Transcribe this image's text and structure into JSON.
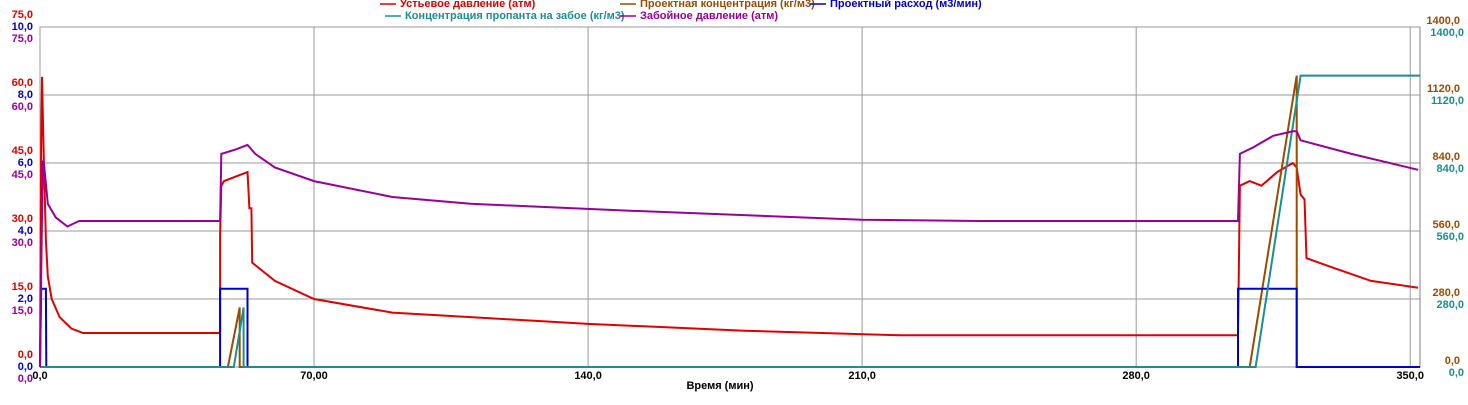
{
  "chart_data": {
    "type": "line",
    "x_label": "Время (мин)",
    "xlim": [
      0,
      352.5
    ],
    "xticks": [
      {
        "value": 0,
        "label": "0,0"
      },
      {
        "value": 70,
        "label": "70,00"
      },
      {
        "value": 140,
        "label": "140,0"
      },
      {
        "value": 210,
        "label": "210,0"
      },
      {
        "value": 280,
        "label": "280,0"
      },
      {
        "value": 350,
        "label": "350,0"
      }
    ],
    "grid": true,
    "axes": [
      {
        "side": "left",
        "color": "#e00000",
        "lim": [
          0,
          75
        ],
        "ticks": [
          {
            "value": 0,
            "label": "0,0"
          },
          {
            "value": 15,
            "label": "15,0"
          },
          {
            "value": 30,
            "label": "30,0"
          },
          {
            "value": 45,
            "label": "45,0"
          },
          {
            "value": 60,
            "label": "60,0"
          },
          {
            "value": 75,
            "label": "75,0"
          }
        ]
      },
      {
        "side": "left",
        "color": "#0000cc",
        "lim": [
          0,
          10
        ],
        "ticks": [
          {
            "value": 0,
            "label": "0,0"
          },
          {
            "value": 2,
            "label": "2,0"
          },
          {
            "value": 4,
            "label": "4,0"
          },
          {
            "value": 6,
            "label": "6,0"
          },
          {
            "value": 8,
            "label": "8,0"
          },
          {
            "value": 10,
            "label": "10,0"
          }
        ]
      },
      {
        "side": "left",
        "color": "#990099",
        "lim": [
          0,
          75
        ],
        "ticks": [
          {
            "value": 0,
            "label": "0,0"
          },
          {
            "value": 15,
            "label": "15,0"
          },
          {
            "value": 30,
            "label": "30,0"
          },
          {
            "value": 45,
            "label": "45,0"
          },
          {
            "value": 60,
            "label": "60,0"
          },
          {
            "value": 75,
            "label": "75,0"
          }
        ]
      },
      {
        "side": "right",
        "color": "#994c00",
        "lim": [
          0,
          1400
        ],
        "ticks": [
          {
            "value": 0,
            "label": "0,0"
          },
          {
            "value": 280,
            "label": "280,0"
          },
          {
            "value": 560,
            "label": "560,0"
          },
          {
            "value": 840,
            "label": "840,0"
          },
          {
            "value": 1120,
            "label": "1120,0"
          },
          {
            "value": 1400,
            "label": "1400,0"
          }
        ]
      },
      {
        "side": "right",
        "color": "#1a8f8f",
        "lim": [
          0,
          1400
        ],
        "ticks": [
          {
            "value": 0,
            "label": "0,0"
          },
          {
            "value": 280,
            "label": "280,0"
          },
          {
            "value": 560,
            "label": "560,0"
          },
          {
            "value": 840,
            "label": "840,0"
          },
          {
            "value": 1120,
            "label": "1120,0"
          },
          {
            "value": 1400,
            "label": "1400,0"
          }
        ]
      }
    ],
    "series": [
      {
        "name": "Устьевое давление (атм)",
        "color": "#e00000",
        "axis": 0,
        "x": [
          0,
          0.3,
          0.5,
          1,
          1.5,
          2,
          3,
          5,
          8,
          11,
          46,
          46,
          46.3,
          47,
          50,
          53,
          53.5,
          54,
          54.2,
          60,
          70,
          90,
          110,
          140,
          180,
          220,
          260,
          306,
          306.5,
          309,
          312,
          316,
          320,
          321,
          322,
          323,
          323.5,
          330,
          340,
          352
        ],
        "values": [
          0,
          50,
          64,
          45,
          28,
          20,
          15,
          11,
          8.5,
          7.5,
          7.5,
          29,
          40,
          41,
          42,
          43,
          35,
          35,
          23,
          19,
          15,
          12,
          11,
          9.5,
          8,
          7,
          7,
          7,
          40,
          41,
          40,
          43,
          45,
          44,
          38,
          37,
          24,
          22,
          19,
          17.5
        ]
      },
      {
        "name": "Проектная концентрация (кг/м3)",
        "color": "#994c00",
        "axis": 3,
        "x": [
          0,
          48,
          51,
          51,
          309,
          321,
          321,
          352.5
        ],
        "values": [
          0,
          0,
          245,
          0,
          0,
          1200,
          0,
          0
        ]
      },
      {
        "name": "Проектный расход (м3/мин)",
        "color": "#0000cc",
        "axis": 1,
        "x": [
          0,
          0.3,
          1.5,
          1.6,
          46,
          46,
          53,
          53,
          306,
          306,
          321,
          321,
          352.5
        ],
        "values": [
          0,
          2.3,
          2.3,
          0,
          0,
          2.3,
          2.3,
          0,
          0,
          2.3,
          2.3,
          0,
          0
        ]
      },
      {
        "name": "Концентрация пропанта на забое (кг/м3)",
        "color": "#1a8f8f",
        "axis": 4,
        "x": [
          0,
          49.5,
          52,
          52,
          310.5,
          322,
          352.5
        ],
        "values": [
          0,
          0,
          245,
          0,
          0,
          1200,
          1200
        ]
      },
      {
        "name": "Забойное давление (атм)",
        "color": "#990099",
        "axis": 2,
        "x": [
          0,
          0.7,
          1,
          2,
          4,
          7,
          10,
          46,
          46.3,
          50,
          53,
          55,
          60,
          70,
          90,
          110,
          150,
          210,
          240,
          306,
          306.5,
          310,
          315,
          320,
          321,
          322,
          335,
          352
        ],
        "values": [
          0,
          45.5,
          45,
          36,
          33,
          31,
          32.2,
          32.2,
          47,
          48,
          49,
          47,
          44,
          41,
          37.5,
          36,
          34.5,
          32.5,
          32.2,
          32.2,
          47,
          48.5,
          51,
          52,
          52,
          50,
          47,
          43.5
        ]
      }
    ]
  }
}
